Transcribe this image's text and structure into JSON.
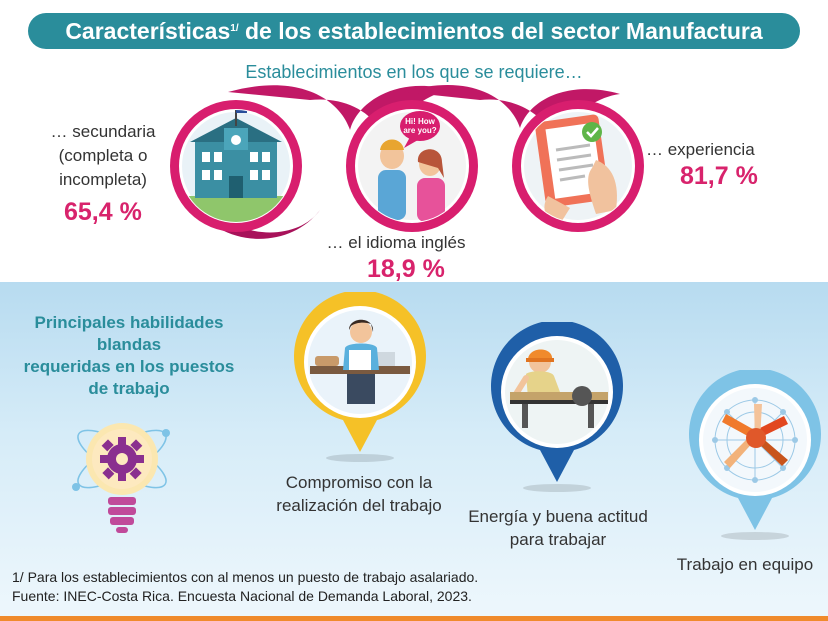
{
  "header": {
    "title_main": "Características",
    "title_sup": "1/",
    "title_rest": " de los establecimientos del sector Manufactura"
  },
  "requirements": {
    "subtitle": "Establecimientos en los que se requiere…",
    "items": [
      {
        "label": "… secundaria (completa o incompleta)",
        "value": "65,4 %",
        "icon": "school-building-icon"
      },
      {
        "label": "… el idioma inglés",
        "value": "18,9 %",
        "icon": "conversation-icon",
        "speech": "Hi! How are you?"
      },
      {
        "label": "… experiencia",
        "value": "81,7 %",
        "icon": "resume-document-icon"
      }
    ]
  },
  "skills": {
    "heading_line1": "Principales habilidades",
    "heading_line2": "blandas",
    "heading_line3": "requeridas en los puestos",
    "heading_line4": "de trabajo",
    "items": [
      {
        "label": "Compromiso con la realización del trabajo",
        "icon": "committed-worker-icon",
        "color": "#f5c127"
      },
      {
        "label": "Energía y buena actitud para trabajar",
        "icon": "energetic-worker-icon",
        "color": "#1f5fa8"
      },
      {
        "label": "Trabajo en equipo",
        "icon": "teamwork-hands-icon",
        "color": "#7ec3e6"
      }
    ]
  },
  "footer": {
    "note": "1/ Para los establecimientos con al menos un puesto de trabajo asalariado.",
    "source": "Fuente: INEC-Costa Rica. Encuesta Nacional de Demanda Laboral, 2023."
  },
  "colors": {
    "accent": "#2a8d9b",
    "highlight": "#d8236c",
    "orange": "#f08a2c"
  }
}
